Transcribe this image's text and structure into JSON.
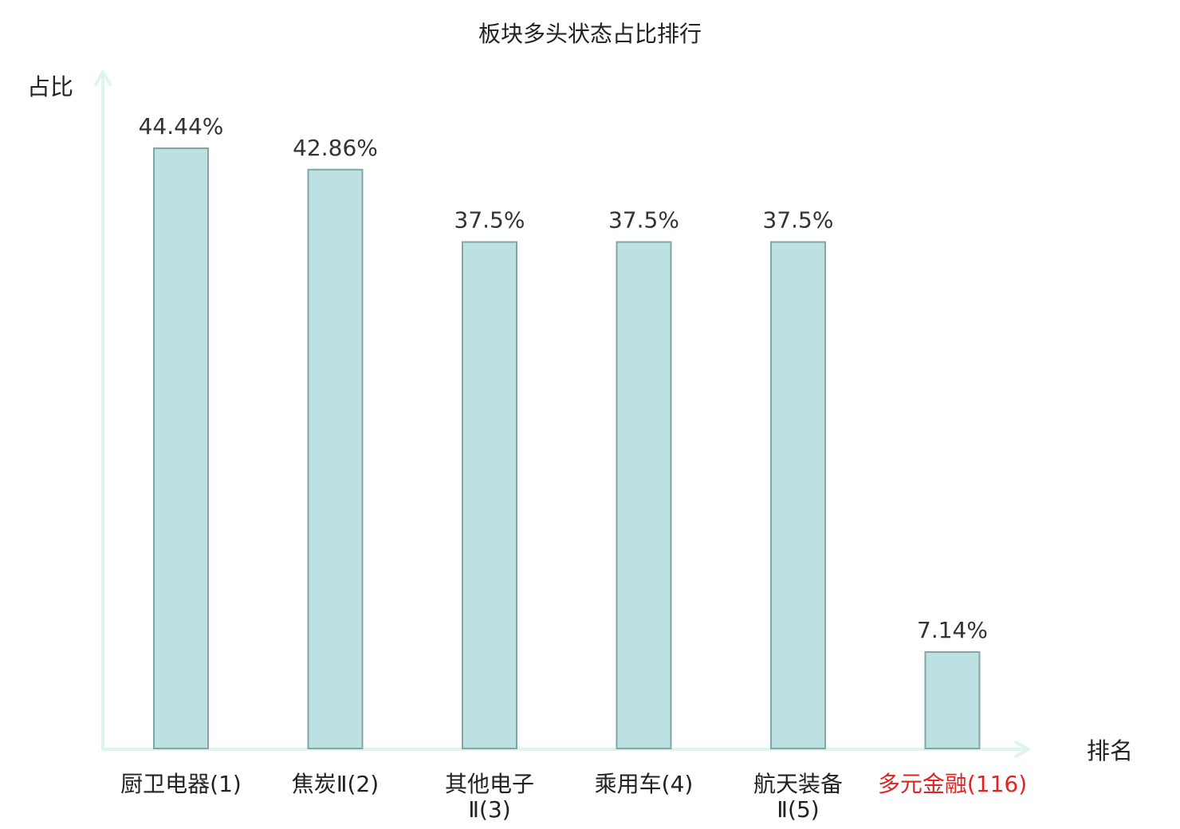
{
  "chart_data": {
    "type": "bar",
    "title": "板块多头状态占比排行",
    "xlabel": "排名",
    "ylabel": "占比",
    "ylim": [
      0,
      50
    ],
    "grid": false,
    "categories": [
      "厨卫电器(1)",
      "焦炭Ⅱ(2)",
      "其他电子Ⅱ(3)",
      "乘用车(4)",
      "航天装备Ⅱ(5)",
      "多元金融(116)"
    ],
    "category_lines": [
      [
        "厨卫电器(1)"
      ],
      [
        "焦炭Ⅱ(2)"
      ],
      [
        "其他电子",
        "Ⅱ(3)"
      ],
      [
        "乘用车(4)"
      ],
      [
        "航天装备",
        "Ⅱ(5)"
      ],
      [
        "多元金融(116)"
      ]
    ],
    "values": [
      44.44,
      42.86,
      37.5,
      37.5,
      37.5,
      7.14
    ],
    "value_labels": [
      "44.44%",
      "42.86%",
      "37.5%",
      "37.5%",
      "37.5%",
      "7.14%"
    ],
    "highlight_index": 5,
    "colors": {
      "bar_fill": "#bde0e3",
      "bar_stroke": "#7fa7a8",
      "axis": "#dff3ef",
      "text": "#222222",
      "value_text": "#333333",
      "highlight_text": "#e32222"
    }
  }
}
